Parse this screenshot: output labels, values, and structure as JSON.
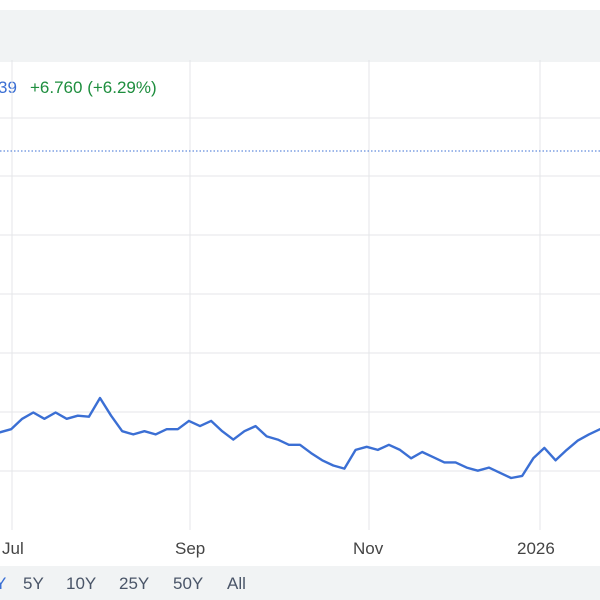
{
  "header": {
    "price_fragment": "39",
    "change": "+6.760 (+6.29%)"
  },
  "range_selector": {
    "items": [
      {
        "label": "Y",
        "active": true
      },
      {
        "label": "5Y",
        "active": false
      },
      {
        "label": "10Y",
        "active": false
      },
      {
        "label": "25Y",
        "active": false
      },
      {
        "label": "50Y",
        "active": false
      },
      {
        "label": "All",
        "active": false
      }
    ]
  },
  "colors": {
    "line": "#3b6fd4",
    "positive": "#1e8e3e",
    "gridline": "#e4e6e8",
    "previous_close": "#3b6fd4"
  },
  "chart_data": {
    "type": "line",
    "x_tick_labels": [
      "Jul",
      "Sep",
      "Nov",
      "2026"
    ],
    "series": [
      {
        "values": [
          112.0,
          112.3,
          113.3,
          113.9,
          113.3,
          113.9,
          113.3,
          113.6,
          113.5,
          115.3,
          113.6,
          112.1,
          111.8,
          112.1,
          111.8,
          112.3,
          112.3,
          113.1,
          112.6,
          113.1,
          112.1,
          111.3,
          112.1,
          112.6,
          111.6,
          111.3,
          110.8,
          110.8,
          110.0,
          109.3,
          108.8,
          108.5,
          110.3,
          110.6,
          110.3,
          110.8,
          110.3,
          109.5,
          110.1,
          109.6,
          109.1,
          109.1,
          108.6,
          108.3,
          108.6,
          108.1,
          107.6,
          107.8,
          109.5,
          110.5,
          109.3,
          110.3,
          111.2,
          111.8,
          112.3
        ],
        "min": 107.6,
        "max": 115.3
      }
    ],
    "previous_close_line": "dotted horizontal reference line",
    "grid": "horizontal and vertical gridlines"
  }
}
